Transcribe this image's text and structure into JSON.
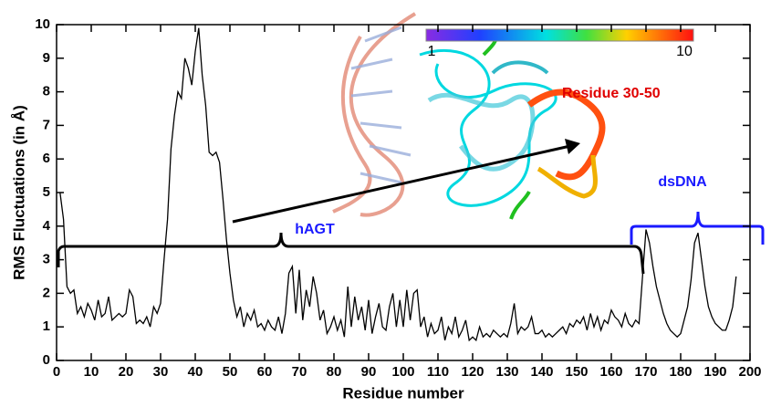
{
  "chart_data": {
    "type": "line",
    "xlabel": "Residue number",
    "ylabel": "RMS Fluctuations (in Å)",
    "color": "#000000",
    "x": [
      1,
      2,
      3,
      4,
      5,
      6,
      7,
      8,
      9,
      10,
      11,
      12,
      13,
      14,
      15,
      16,
      17,
      18,
      19,
      20,
      21,
      22,
      23,
      24,
      25,
      26,
      27,
      28,
      29,
      30,
      31,
      32,
      33,
      34,
      35,
      36,
      37,
      38,
      39,
      40,
      41,
      42,
      43,
      44,
      45,
      46,
      47,
      48,
      49,
      50,
      51,
      52,
      53,
      54,
      55,
      56,
      57,
      58,
      59,
      60,
      61,
      62,
      63,
      64,
      65,
      66,
      67,
      68,
      69,
      70,
      71,
      72,
      73,
      74,
      75,
      76,
      77,
      78,
      79,
      80,
      81,
      82,
      83,
      84,
      85,
      86,
      87,
      88,
      89,
      90,
      91,
      92,
      93,
      94,
      95,
      96,
      97,
      98,
      99,
      100,
      101,
      102,
      103,
      104,
      105,
      106,
      107,
      108,
      109,
      110,
      111,
      112,
      113,
      114,
      115,
      116,
      117,
      118,
      119,
      120,
      121,
      122,
      123,
      124,
      125,
      126,
      127,
      128,
      129,
      130,
      131,
      132,
      133,
      134,
      135,
      136,
      137,
      138,
      139,
      140,
      141,
      142,
      143,
      144,
      145,
      146,
      147,
      148,
      149,
      150,
      151,
      152,
      153,
      154,
      155,
      156,
      157,
      158,
      159,
      160,
      161,
      162,
      163,
      164,
      165,
      166,
      167,
      168,
      169,
      170,
      171,
      172,
      173,
      174,
      175,
      176,
      177,
      178,
      179,
      180,
      181,
      182,
      183,
      184,
      185,
      186,
      187,
      188,
      189,
      190,
      191,
      192,
      193,
      194,
      195,
      196
    ],
    "values": [
      5.0,
      4.2,
      2.2,
      2.0,
      2.1,
      1.4,
      1.6,
      1.3,
      1.7,
      1.5,
      1.2,
      1.8,
      1.3,
      1.4,
      1.9,
      1.2,
      1.3,
      1.4,
      1.3,
      1.4,
      2.1,
      1.9,
      1.1,
      1.2,
      1.1,
      1.3,
      1.0,
      1.6,
      1.4,
      1.7,
      3.0,
      4.2,
      6.3,
      7.3,
      8.0,
      7.8,
      9.0,
      8.7,
      8.2,
      9.2,
      9.9,
      8.5,
      7.6,
      6.2,
      6.1,
      6.2,
      5.9,
      4.8,
      3.6,
      2.6,
      1.8,
      1.3,
      1.6,
      1.0,
      1.4,
      1.2,
      1.5,
      1.0,
      1.1,
      0.9,
      1.2,
      1.0,
      0.9,
      1.3,
      0.8,
      1.4,
      2.6,
      2.8,
      1.4,
      2.7,
      1.2,
      2.1,
      1.6,
      2.5,
      2.0,
      1.2,
      1.5,
      0.8,
      1.0,
      1.3,
      0.9,
      1.2,
      0.7,
      2.2,
      1.0,
      1.9,
      1.2,
      1.6,
      0.9,
      1.8,
      0.8,
      1.3,
      1.7,
      1.0,
      0.9,
      1.6,
      2.0,
      1.0,
      1.8,
      1.0,
      2.1,
      1.2,
      2.0,
      2.1,
      1.0,
      1.3,
      0.7,
      1.1,
      0.8,
      0.9,
      1.3,
      0.6,
      1.0,
      0.8,
      1.3,
      0.7,
      0.9,
      1.2,
      0.6,
      0.7,
      0.6,
      1.0,
      0.7,
      0.8,
      0.7,
      0.9,
      0.8,
      0.7,
      0.8,
      0.7,
      1.1,
      1.7,
      0.8,
      1.0,
      0.9,
      1.0,
      1.3,
      0.8,
      0.8,
      0.9,
      0.7,
      0.8,
      0.7,
      0.8,
      0.9,
      1.0,
      0.8,
      1.1,
      1.0,
      1.2,
      1.1,
      1.3,
      0.9,
      1.4,
      1.0,
      1.3,
      0.9,
      1.2,
      1.1,
      1.5,
      1.3,
      1.2,
      1.0,
      1.4,
      1.1,
      1.0,
      1.2,
      1.1,
      2.5,
      3.9,
      3.5,
      2.8,
      2.2,
      1.8,
      1.4,
      1.1,
      0.9,
      0.8,
      0.7,
      0.8,
      1.2,
      1.6,
      2.4,
      3.5,
      3.8,
      3.0,
      2.2,
      1.6,
      1.3,
      1.1,
      1.0,
      0.9,
      0.9,
      1.2,
      1.6,
      2.5
    ],
    "xlim": [
      0,
      200
    ],
    "xticks": [
      0,
      10,
      20,
      30,
      40,
      50,
      60,
      70,
      80,
      90,
      100,
      110,
      120,
      130,
      140,
      150,
      160,
      170,
      180,
      190,
      200
    ],
    "ylim": [
      0,
      10
    ],
    "yticks": [
      0,
      1,
      2,
      3,
      4,
      5,
      6,
      7,
      8,
      9,
      10
    ],
    "colorbar_ticks": [
      1,
      10
    ],
    "annotations": [
      {
        "text": "Residue 30-50",
        "color": "#e00000"
      },
      {
        "text": "hAGT",
        "color": "#1a1aff"
      },
      {
        "text": "dsDNA",
        "color": "#1a1aff"
      }
    ]
  }
}
